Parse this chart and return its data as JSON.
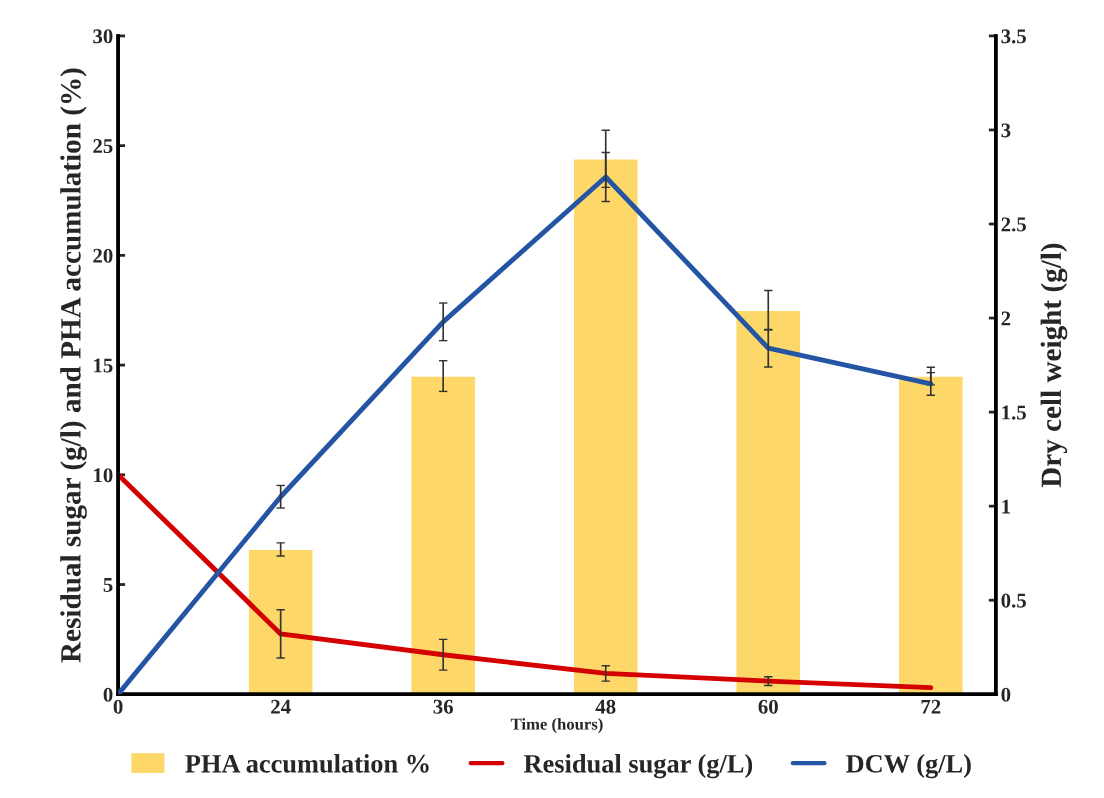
{
  "chart_data": {
    "type": "bar",
    "xlabel": "Time (hours)",
    "ylabel": "Residual sugar (g/l) and PHA accumulation (%)",
    "y2label": "Dry cell weight (g/l)",
    "categories": [
      "0",
      "24",
      "36",
      "48",
      "60",
      "72"
    ],
    "series": [
      {
        "name": "PHA accumulation %",
        "color": "#fdd868",
        "values": [
          null,
          6.6,
          14.5,
          24.4,
          17.5,
          14.5
        ],
        "errors": [
          null,
          0.3,
          0.7,
          1.3,
          0.9,
          0.4
        ]
      },
      {
        "name": "Residual sugar (g/L)",
        "type": "line",
        "color": "#d40000",
        "values": [
          10,
          2.75,
          1.8,
          0.95,
          0.6,
          0.3
        ],
        "errors": [
          null,
          1.1,
          0.7,
          0.35,
          0.2,
          null
        ]
      },
      {
        "name": "DCW (g/L)",
        "type": "line",
        "axis": "y2",
        "color": "#2455a4",
        "values": [
          0,
          1.05,
          1.98,
          2.75,
          1.84,
          1.65
        ],
        "errors": [
          null,
          0.06,
          0.1,
          0.13,
          0.1,
          0.06
        ]
      }
    ],
    "ylim": [
      0,
      30
    ],
    "yticks": [
      0,
      5,
      10,
      15,
      20,
      25,
      30
    ],
    "y2lim": [
      0,
      3.5
    ],
    "y2ticks": [
      0,
      0.5,
      1,
      1.5,
      2,
      2.5,
      3,
      3.5
    ],
    "grid": false,
    "legend": "bottom",
    "marker": "none",
    "line_style": "solid"
  }
}
